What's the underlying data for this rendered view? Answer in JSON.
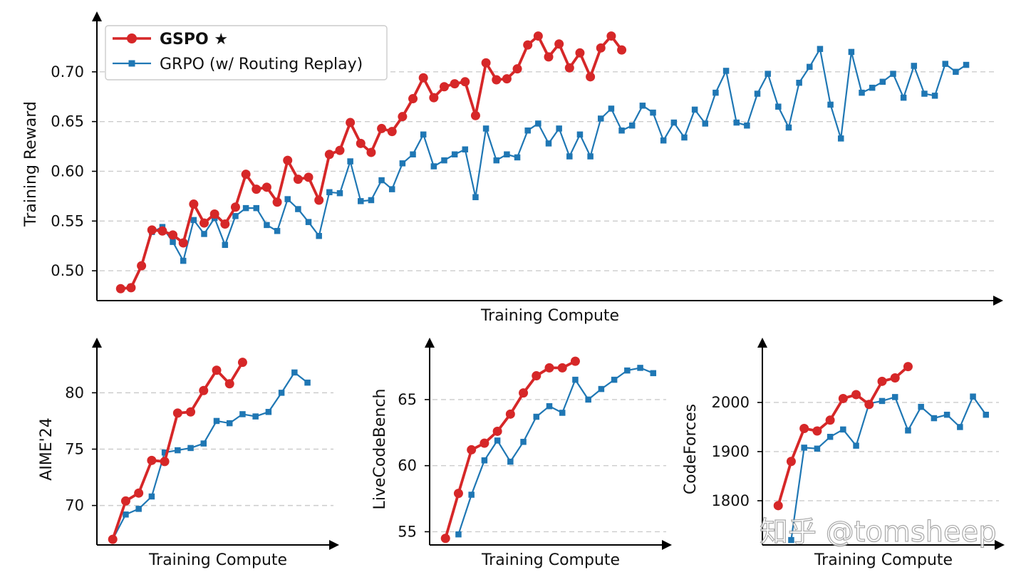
{
  "colors": {
    "gspo": "#d62728",
    "grpo": "#1f77b4"
  },
  "legend": {
    "gspo_label": "GSPO ★",
    "grpo_label": "GRPO (w/ Routing Replay)"
  },
  "watermark": "知乎 @tomsheep",
  "chart_data": [
    {
      "type": "line",
      "xlabel": "Training Compute",
      "ylabel": "Training Reward",
      "ylim": [
        0.47,
        0.745
      ],
      "yticks": [
        0.5,
        0.55,
        0.6,
        0.65,
        0.7
      ],
      "ytick_labels": [
        "0.50",
        "0.55",
        "0.60",
        "0.65",
        "0.70"
      ],
      "xlim": [
        -2,
        84
      ],
      "grid": "horizontal dashed",
      "legend_position": "top-left",
      "series": [
        {
          "name": "GSPO ★",
          "x": [
            0,
            1,
            2,
            3,
            4,
            5,
            6,
            7,
            8,
            9,
            10,
            11,
            12,
            13,
            14,
            15,
            16,
            17,
            18,
            19,
            20,
            21,
            22,
            23,
            24,
            25,
            26,
            27,
            28,
            29,
            30,
            31,
            32,
            33,
            34,
            35,
            36,
            37,
            38,
            39,
            40,
            41,
            42,
            43,
            44,
            45,
            46,
            47,
            48
          ],
          "values": [
            0.482,
            0.483,
            0.505,
            0.541,
            0.54,
            0.536,
            0.528,
            0.567,
            0.548,
            0.557,
            0.547,
            0.564,
            0.597,
            0.582,
            0.584,
            0.569,
            0.611,
            0.592,
            0.594,
            0.571,
            0.617,
            0.621,
            0.649,
            0.628,
            0.619,
            0.643,
            0.64,
            0.655,
            0.673,
            0.694,
            0.674,
            0.685,
            0.688,
            0.69,
            0.656,
            0.709,
            0.692,
            0.693,
            0.703,
            0.727,
            0.736,
            0.715,
            0.728,
            0.704,
            0.719,
            0.695,
            0.724,
            0.736,
            0.722
          ]
        },
        {
          "name": "GRPO (w/ Routing Replay)",
          "x": [
            1,
            2,
            3,
            4,
            5,
            6,
            7,
            8,
            9,
            10,
            11,
            12,
            13,
            14,
            15,
            16,
            17,
            18,
            19,
            20,
            21,
            22,
            23,
            24,
            25,
            26,
            27,
            28,
            29,
            30,
            31,
            32,
            33,
            34,
            35,
            36,
            37,
            38,
            39,
            40,
            41,
            42,
            43,
            44,
            45,
            46,
            47,
            48,
            49,
            50,
            51,
            52,
            53,
            54,
            55,
            56,
            57,
            58,
            59,
            60,
            61,
            62,
            63,
            64,
            65,
            66,
            67,
            68,
            69,
            70,
            71,
            72,
            73,
            74,
            75,
            76,
            77,
            78,
            79,
            80,
            81
          ],
          "values": [
            0.484,
            0.505,
            0.539,
            0.544,
            0.529,
            0.51,
            0.551,
            0.537,
            0.553,
            0.526,
            0.555,
            0.563,
            0.563,
            0.546,
            0.54,
            0.572,
            0.562,
            0.549,
            0.535,
            0.579,
            0.578,
            0.61,
            0.57,
            0.571,
            0.591,
            0.582,
            0.608,
            0.617,
            0.637,
            0.605,
            0.611,
            0.617,
            0.622,
            0.574,
            0.643,
            0.611,
            0.617,
            0.614,
            0.641,
            0.648,
            0.628,
            0.643,
            0.615,
            0.637,
            0.615,
            0.653,
            0.663,
            0.641,
            0.646,
            0.666,
            0.659,
            0.631,
            0.649,
            0.634,
            0.662,
            0.648,
            0.679,
            0.701,
            0.649,
            0.646,
            0.678,
            0.698,
            0.665,
            0.644,
            0.689,
            0.705,
            0.723,
            0.667,
            0.633,
            0.72,
            0.679,
            0.684,
            0.69,
            0.698,
            0.674,
            0.706,
            0.678,
            0.676,
            0.708,
            0.7,
            0.707
          ]
        }
      ]
    },
    {
      "type": "line",
      "xlabel": "Training Compute",
      "ylabel": "AIME'24",
      "ylim": [
        66.5,
        83.5
      ],
      "yticks": [
        70,
        75,
        80
      ],
      "ytick_labels": [
        "70",
        "75",
        "80"
      ],
      "xlim": [
        -1,
        17
      ],
      "grid": "horizontal dashed",
      "series": [
        {
          "name": "GSPO ★",
          "x": [
            0,
            1,
            2,
            3,
            4,
            5,
            6,
            7,
            8,
            9,
            10
          ],
          "values": [
            67.0,
            70.4,
            71.1,
            74.0,
            73.9,
            78.2,
            78.3,
            80.2,
            82.0,
            80.8,
            82.7
          ]
        },
        {
          "name": "GRPO (w/ Routing Replay)",
          "x": [
            0,
            1,
            2,
            3,
            4,
            5,
            6,
            7,
            8,
            9,
            10,
            11,
            12,
            13,
            14,
            15
          ],
          "values": [
            67.0,
            69.2,
            69.7,
            70.8,
            74.7,
            74.9,
            75.1,
            75.5,
            77.5,
            77.3,
            78.1,
            77.9,
            78.3,
            80.0,
            81.8,
            80.9
          ]
        }
      ]
    },
    {
      "type": "line",
      "xlabel": "Training Compute",
      "ylabel": "LiveCodeBench",
      "ylim": [
        54.0,
        68.5
      ],
      "yticks": [
        55,
        60,
        65
      ],
      "ytick_labels": [
        "55",
        "60",
        "65"
      ],
      "xlim": [
        -1,
        17
      ],
      "grid": "horizontal dashed",
      "series": [
        {
          "name": "GSPO ★",
          "x": [
            0,
            1,
            2,
            3,
            4,
            5,
            6,
            7,
            8,
            9,
            10
          ],
          "values": [
            54.5,
            57.9,
            61.2,
            61.7,
            62.6,
            63.9,
            65.5,
            66.8,
            67.4,
            67.4,
            67.9
          ]
        },
        {
          "name": "GRPO (w/ Routing Replay)",
          "x": [
            1,
            2,
            3,
            4,
            5,
            6,
            7,
            8,
            9,
            10,
            11,
            12,
            13,
            14,
            15,
            16
          ],
          "values": [
            54.8,
            57.8,
            60.4,
            61.9,
            60.3,
            61.8,
            63.7,
            64.5,
            64.0,
            66.5,
            65.0,
            65.8,
            66.5,
            67.2,
            67.4,
            67.0
          ]
        }
      ]
    },
    {
      "type": "line",
      "xlabel": "Training Compute",
      "ylabel": "CodeForces",
      "ylim": [
        1710,
        2100
      ],
      "yticks": [
        1800,
        1900,
        2000
      ],
      "ytick_labels": [
        "1800",
        "1900",
        "2000"
      ],
      "xlim": [
        -1,
        17
      ],
      "grid": "horizontal dashed",
      "series": [
        {
          "name": "GSPO ★",
          "x": [
            0,
            1,
            2,
            3,
            4,
            5,
            6,
            7,
            8,
            9,
            10
          ],
          "values": [
            1790,
            1880,
            1947,
            1942,
            1964,
            2008,
            2016,
            1996,
            2043,
            2050,
            2073
          ]
        },
        {
          "name": "GRPO (w/ Routing Replay)",
          "x": [
            1,
            2,
            3,
            4,
            5,
            6,
            7,
            8,
            9,
            10,
            11,
            12,
            13,
            14,
            15,
            16
          ],
          "values": [
            1720,
            1908,
            1906,
            1930,
            1945,
            1912,
            1998,
            2003,
            2011,
            1943,
            1991,
            1968,
            1975,
            1950,
            2012,
            1975
          ]
        }
      ]
    }
  ]
}
